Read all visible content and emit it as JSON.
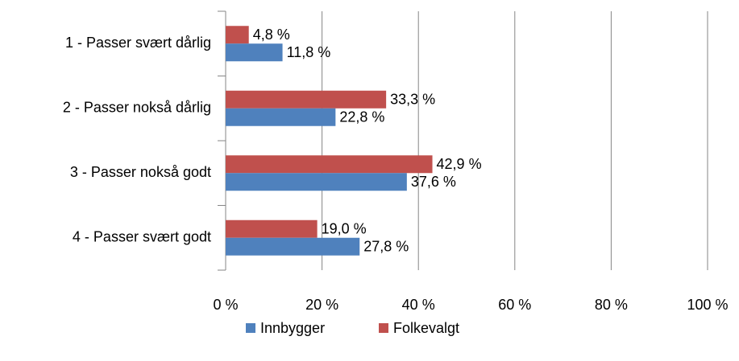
{
  "chart_data": {
    "type": "hbar",
    "categories": [
      "1 - Passer svært dårlig",
      "2 - Passer nokså dårlig",
      "3 - Passer nokså godt",
      "4 - Passer svært godt"
    ],
    "series": [
      {
        "name": "Innbygger",
        "color": "#4f81bd",
        "values": [
          11.8,
          22.8,
          37.6,
          27.8
        ],
        "value_labels": [
          "11,8 %",
          "22,8 %",
          "37,6 %",
          "27,8 %"
        ]
      },
      {
        "name": "Folkevalgt",
        "color": "#c0504d",
        "values": [
          4.8,
          33.3,
          42.9,
          19.0
        ],
        "value_labels": [
          "4,8 %",
          "33,3 %",
          "42,9 %",
          "19,0 %"
        ]
      }
    ],
    "xlim": [
      0,
      100
    ],
    "xticks": [
      {
        "value": 0,
        "label": "0 %"
      },
      {
        "value": 20,
        "label": "20 %"
      },
      {
        "value": 40,
        "label": "40 %"
      },
      {
        "value": 60,
        "label": "60 %"
      },
      {
        "value": 80,
        "label": "80 %"
      },
      {
        "value": 100,
        "label": "100 %"
      }
    ],
    "grid": true,
    "legend": "bottom"
  }
}
